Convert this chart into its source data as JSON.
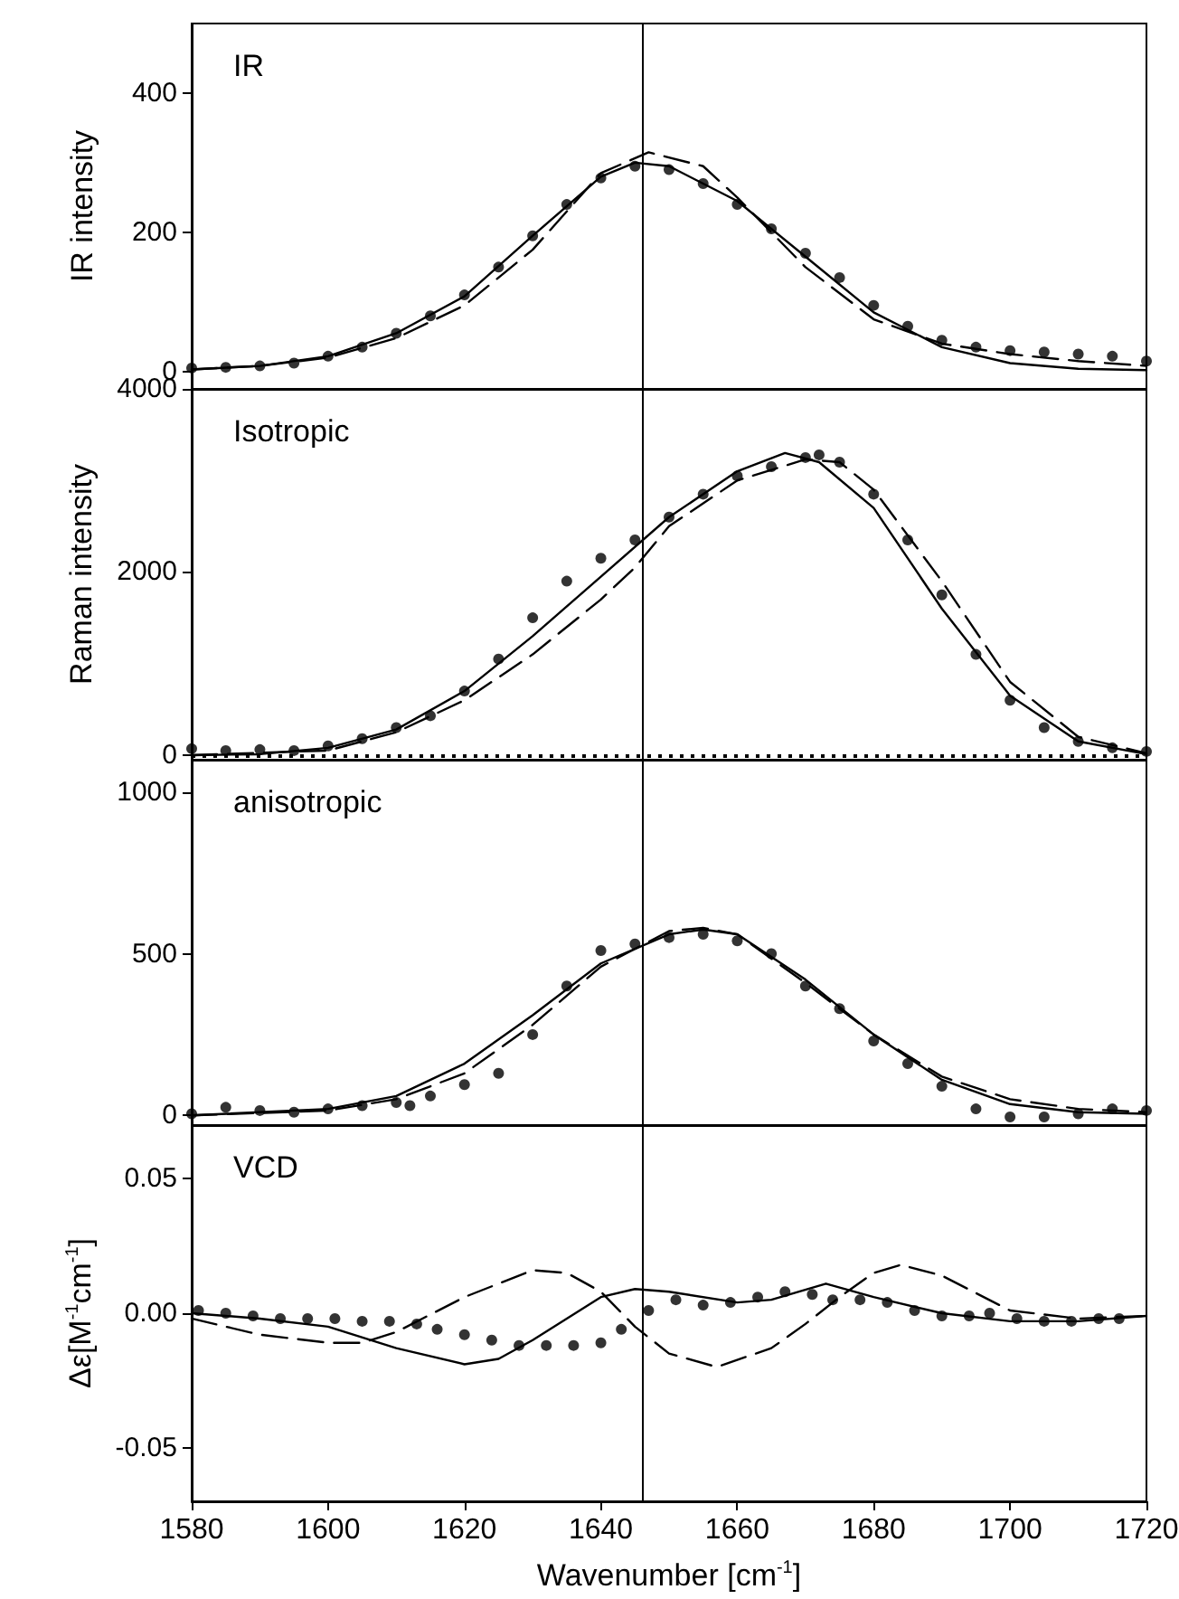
{
  "chart_data": [
    {
      "type": "line",
      "title": "IR",
      "ylabel": "IR intensity",
      "xlim": [
        1580,
        1720
      ],
      "xticks": [
        1580,
        1600,
        1620,
        1640,
        1660,
        1680,
        1700,
        1720
      ],
      "ylim": [
        -25,
        500
      ],
      "yticks": [
        0,
        200,
        400
      ],
      "tick_labels": "y",
      "grid": false,
      "ref_lines": [
        {
          "axis": "x",
          "value": 1646,
          "color": "#000000",
          "line_style": "solid"
        }
      ],
      "series": [
        {
          "type": "scatter",
          "marker": "circle",
          "color": "#000000",
          "x": [
            1580,
            1585,
            1590,
            1595,
            1600,
            1605,
            1610,
            1615,
            1620,
            1625,
            1630,
            1635,
            1640,
            1645,
            1650,
            1655,
            1660,
            1665,
            1670,
            1675,
            1680,
            1685,
            1690,
            1695,
            1700,
            1705,
            1710,
            1715,
            1720
          ],
          "values": [
            5,
            6,
            8,
            12,
            22,
            35,
            55,
            80,
            110,
            150,
            195,
            240,
            278,
            295,
            290,
            270,
            240,
            205,
            170,
            135,
            95,
            65,
            45,
            35,
            30,
            28,
            25,
            22,
            15
          ]
        },
        {
          "line_style": "solid",
          "color": "#000000",
          "x": [
            1580,
            1590,
            1600,
            1610,
            1620,
            1630,
            1640,
            1645,
            1650,
            1660,
            1670,
            1680,
            1690,
            1700,
            1710,
            1720
          ],
          "values": [
            3,
            8,
            22,
            55,
            108,
            195,
            280,
            300,
            295,
            245,
            165,
            85,
            35,
            12,
            4,
            2
          ]
        },
        {
          "line_style": "dashed",
          "color": "#000000",
          "x": [
            1580,
            1590,
            1600,
            1610,
            1620,
            1630,
            1640,
            1647,
            1655,
            1660,
            1670,
            1680,
            1690,
            1700,
            1710,
            1720
          ],
          "values": [
            3,
            8,
            20,
            48,
            95,
            175,
            285,
            315,
            295,
            250,
            150,
            75,
            40,
            25,
            15,
            8
          ]
        }
      ]
    },
    {
      "type": "line",
      "title": "Isotropic",
      "ylabel": "Raman intensity",
      "xlim": [
        1580,
        1720
      ],
      "xticks": [
        1580,
        1600,
        1620,
        1640,
        1660,
        1680,
        1700,
        1720
      ],
      "ylim": [
        -50,
        4000
      ],
      "yticks": [
        0,
        2000,
        4000
      ],
      "tick_labels": "y",
      "grid": false,
      "ref_lines": [
        {
          "axis": "x",
          "value": 1646,
          "color": "#000000",
          "line_style": "solid"
        },
        {
          "axis": "y",
          "value": 0,
          "color": "#000000",
          "line_style": "dotted"
        }
      ],
      "series": [
        {
          "type": "scatter",
          "marker": "circle",
          "color": "#000000",
          "x": [
            1580,
            1585,
            1590,
            1595,
            1600,
            1605,
            1610,
            1615,
            1620,
            1625,
            1630,
            1635,
            1640,
            1645,
            1650,
            1655,
            1660,
            1665,
            1670,
            1672,
            1675,
            1680,
            1685,
            1690,
            1695,
            1700,
            1705,
            1710,
            1715,
            1720
          ],
          "values": [
            70,
            50,
            60,
            50,
            100,
            180,
            300,
            430,
            700,
            1050,
            1500,
            1900,
            2150,
            2350,
            2600,
            2850,
            3050,
            3150,
            3250,
            3280,
            3200,
            2850,
            2350,
            1750,
            1100,
            600,
            300,
            150,
            80,
            40
          ]
        },
        {
          "line_style": "solid",
          "color": "#000000",
          "x": [
            1580,
            1590,
            1600,
            1610,
            1620,
            1630,
            1640,
            1650,
            1660,
            1667,
            1672,
            1680,
            1690,
            1700,
            1710,
            1720
          ],
          "values": [
            0,
            10,
            80,
            280,
            700,
            1300,
            1950,
            2600,
            3100,
            3300,
            3200,
            2700,
            1600,
            650,
            150,
            10
          ]
        },
        {
          "line_style": "dashed",
          "color": "#000000",
          "x": [
            1580,
            1600,
            1610,
            1620,
            1630,
            1640,
            1645,
            1650,
            1660,
            1670,
            1675,
            1680,
            1690,
            1700,
            1710,
            1720
          ],
          "values": [
            0,
            50,
            250,
            600,
            1100,
            1700,
            2050,
            2500,
            3000,
            3230,
            3200,
            2900,
            1900,
            800,
            200,
            20
          ]
        }
      ]
    },
    {
      "type": "line",
      "title": "anisotropic",
      "xlim": [
        1580,
        1720
      ],
      "xticks": [
        1580,
        1600,
        1620,
        1640,
        1660,
        1680,
        1700,
        1720
      ],
      "ylim": [
        -30,
        1100
      ],
      "yticks": [
        0,
        500,
        1000
      ],
      "tick_labels": "y",
      "grid": false,
      "ref_lines": [
        {
          "axis": "x",
          "value": 1646,
          "color": "#000000",
          "line_style": "solid"
        }
      ],
      "series": [
        {
          "type": "scatter",
          "marker": "circle",
          "color": "#000000",
          "x": [
            1580,
            1585,
            1590,
            1595,
            1600,
            1605,
            1610,
            1612,
            1615,
            1620,
            1625,
            1630,
            1635,
            1640,
            1645,
            1650,
            1655,
            1660,
            1665,
            1670,
            1675,
            1680,
            1685,
            1690,
            1695,
            1700,
            1705,
            1710,
            1715,
            1720
          ],
          "values": [
            5,
            25,
            15,
            10,
            20,
            30,
            40,
            30,
            60,
            95,
            130,
            250,
            400,
            510,
            530,
            550,
            560,
            540,
            500,
            400,
            330,
            230,
            160,
            90,
            20,
            -5,
            -5,
            5,
            20,
            15
          ]
        },
        {
          "line_style": "solid",
          "color": "#000000",
          "x": [
            1580,
            1600,
            1610,
            1620,
            1630,
            1640,
            1650,
            1655,
            1660,
            1670,
            1680,
            1690,
            1700,
            1710,
            1720
          ],
          "values": [
            0,
            20,
            60,
            160,
            310,
            470,
            560,
            575,
            560,
            420,
            250,
            110,
            35,
            10,
            5
          ]
        },
        {
          "line_style": "dashed",
          "color": "#000000",
          "x": [
            1580,
            1600,
            1610,
            1620,
            1630,
            1640,
            1650,
            1655,
            1660,
            1670,
            1680,
            1690,
            1700,
            1710,
            1720
          ],
          "values": [
            0,
            15,
            50,
            130,
            280,
            460,
            570,
            580,
            560,
            410,
            250,
            120,
            50,
            20,
            10
          ]
        }
      ]
    },
    {
      "type": "line",
      "title": "VCD",
      "xlabel": "Wavenumber [cm$^{-1}$]",
      "ylabel": "Δε[M$^{-1}$cm$^{-1}$]",
      "xlim": [
        1580,
        1720
      ],
      "xticks": [
        1580,
        1600,
        1620,
        1640,
        1660,
        1680,
        1700,
        1720
      ],
      "ylim": [
        -0.07,
        0.07
      ],
      "yticks": [
        {
          "value": -0.05,
          "label": "-0.05"
        },
        {
          "value": 0,
          "label": "0.00"
        },
        {
          "value": 0.05,
          "label": "0.05"
        }
      ],
      "grid": false,
      "ref_lines": [
        {
          "axis": "x",
          "value": 1646,
          "color": "#000000",
          "line_style": "solid"
        }
      ],
      "series": [
        {
          "type": "scatter",
          "marker": "circle",
          "color": "#000000",
          "x": [
            1581,
            1585,
            1589,
            1593,
            1597,
            1601,
            1605,
            1609,
            1613,
            1616,
            1620,
            1624,
            1628,
            1632,
            1636,
            1640,
            1643,
            1647,
            1651,
            1655,
            1659,
            1663,
            1667,
            1671,
            1674,
            1678,
            1682,
            1686,
            1690,
            1694,
            1697,
            1701,
            1705,
            1709,
            1713,
            1716
          ],
          "values": [
            0.001,
            0.0,
            -0.001,
            -0.002,
            -0.002,
            -0.002,
            -0.003,
            -0.003,
            -0.004,
            -0.006,
            -0.008,
            -0.01,
            -0.012,
            -0.012,
            -0.012,
            -0.011,
            -0.006,
            0.001,
            0.005,
            0.003,
            0.004,
            0.006,
            0.008,
            0.007,
            0.005,
            0.005,
            0.004,
            0.001,
            -0.001,
            -0.001,
            0.0,
            -0.002,
            -0.003,
            -0.003,
            -0.002,
            -0.002
          ]
        },
        {
          "line_style": "solid",
          "color": "#000000",
          "x": [
            1580,
            1590,
            1600,
            1610,
            1620,
            1625,
            1630,
            1640,
            1645,
            1650,
            1660,
            1665,
            1673,
            1680,
            1690,
            1700,
            1710,
            1720
          ],
          "values": [
            0,
            -0.002,
            -0.005,
            -0.013,
            -0.019,
            -0.017,
            -0.01,
            0.006,
            0.009,
            0.008,
            0.004,
            0.005,
            0.011,
            0.006,
            0,
            -0.003,
            -0.003,
            -0.001
          ]
        },
        {
          "line_style": "dashed",
          "color": "#000000",
          "x": [
            1580,
            1590,
            1600,
            1605,
            1610,
            1620,
            1630,
            1635,
            1640,
            1645,
            1650,
            1657,
            1665,
            1670,
            1675,
            1680,
            1684,
            1690,
            1700,
            1710,
            1720
          ],
          "values": [
            -0.002,
            -0.008,
            -0.011,
            -0.011,
            -0.007,
            0.006,
            0.016,
            0.015,
            0.008,
            -0.005,
            -0.015,
            -0.02,
            -0.013,
            -0.004,
            0.006,
            0.015,
            0.018,
            0.014,
            0.001,
            -0.002,
            -0.001
          ]
        }
      ]
    }
  ]
}
